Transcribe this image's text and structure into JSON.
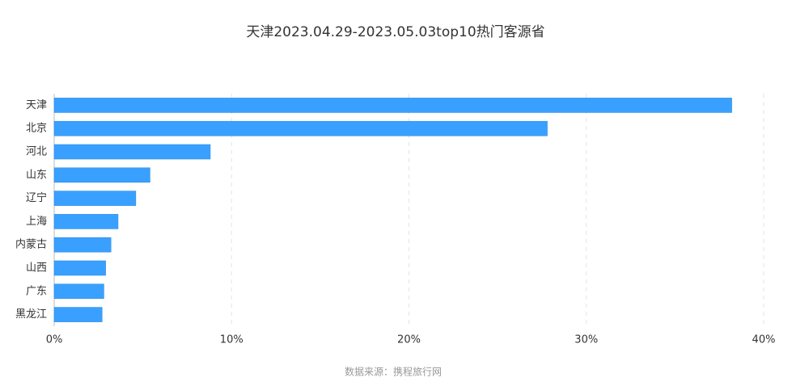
{
  "chart_data": {
    "type": "bar",
    "orientation": "horizontal",
    "title": "天津2023.04.29-2023.05.03top10热门客源省",
    "source": "数据来源：携程旅行网",
    "categories": [
      "天津",
      "北京",
      "河北",
      "山东",
      "辽宁",
      "上海",
      "内蒙古",
      "山西",
      "广东",
      "黑龙江"
    ],
    "values": [
      38.2,
      27.8,
      8.8,
      5.4,
      4.6,
      3.6,
      3.2,
      2.9,
      2.8,
      2.7
    ],
    "color": "#3aa0ff",
    "xlim": [
      0,
      40
    ],
    "xticks": [
      {
        "value": 0,
        "label": "0%"
      },
      {
        "value": 10,
        "label": "10%"
      },
      {
        "value": 20,
        "label": "20%"
      },
      {
        "value": 30,
        "label": "30%"
      },
      {
        "value": 40,
        "label": "40%"
      }
    ],
    "grid": true
  }
}
